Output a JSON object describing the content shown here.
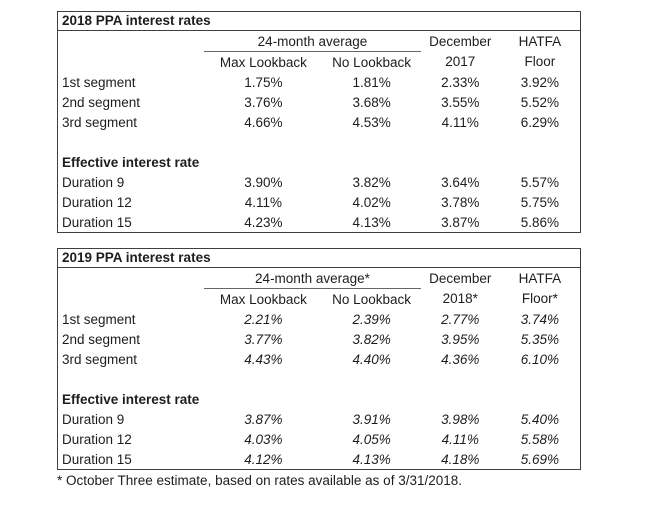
{
  "colors": {
    "border": "#3f3f3f",
    "underline": "#666666",
    "text": "#1d1d1d",
    "background": "#ffffff"
  },
  "footnote": "* October Three estimate, based on rates available as of 3/31/2018.",
  "tables": [
    {
      "title": "2018 PPA interest rates",
      "span_header": "24-month average",
      "headers_top": [
        "December",
        "HATFA"
      ],
      "headers_sub": [
        "Max Lookback",
        "No Lookback",
        "2017",
        "Floor"
      ],
      "values_italic": false,
      "sections": [
        {
          "label": "",
          "rows": [
            {
              "label": "1st segment",
              "values": [
                "1.75%",
                "1.81%",
                "2.33%",
                "3.92%"
              ]
            },
            {
              "label": "2nd segment",
              "values": [
                "3.76%",
                "3.68%",
                "3.55%",
                "5.52%"
              ]
            },
            {
              "label": "3rd segment",
              "values": [
                "4.66%",
                "4.53%",
                "4.11%",
                "6.29%"
              ]
            }
          ]
        },
        {
          "label": "Effective interest rate",
          "rows": [
            {
              "label": "Duration 9",
              "values": [
                "3.90%",
                "3.82%",
                "3.64%",
                "5.57%"
              ]
            },
            {
              "label": "Duration 12",
              "values": [
                "4.11%",
                "4.02%",
                "3.78%",
                "5.75%"
              ]
            },
            {
              "label": "Duration 15",
              "values": [
                "4.23%",
                "4.13%",
                "3.87%",
                "5.86%"
              ]
            }
          ]
        }
      ]
    },
    {
      "title": "2019 PPA interest rates",
      "span_header": "24-month average*",
      "headers_top": [
        "December",
        "HATFA"
      ],
      "headers_sub": [
        "Max Lookback",
        "No Lookback",
        "2018*",
        "Floor*"
      ],
      "values_italic": true,
      "sections": [
        {
          "label": "",
          "rows": [
            {
              "label": "1st segment",
              "values": [
                "2.21%",
                "2.39%",
                "2.77%",
                "3.74%"
              ]
            },
            {
              "label": "2nd segment",
              "values": [
                "3.77%",
                "3.82%",
                "3.95%",
                "5.35%"
              ]
            },
            {
              "label": "3rd segment",
              "values": [
                "4.43%",
                "4.40%",
                "4.36%",
                "6.10%"
              ]
            }
          ]
        },
        {
          "label": "Effective interest rate",
          "rows": [
            {
              "label": "Duration 9",
              "values": [
                "3.87%",
                "3.91%",
                "3.98%",
                "5.40%"
              ]
            },
            {
              "label": "Duration 12",
              "values": [
                "4.03%",
                "4.05%",
                "4.11%",
                "5.58%"
              ]
            },
            {
              "label": "Duration 15",
              "values": [
                "4.12%",
                "4.13%",
                "4.18%",
                "5.69%"
              ]
            }
          ]
        }
      ]
    }
  ]
}
